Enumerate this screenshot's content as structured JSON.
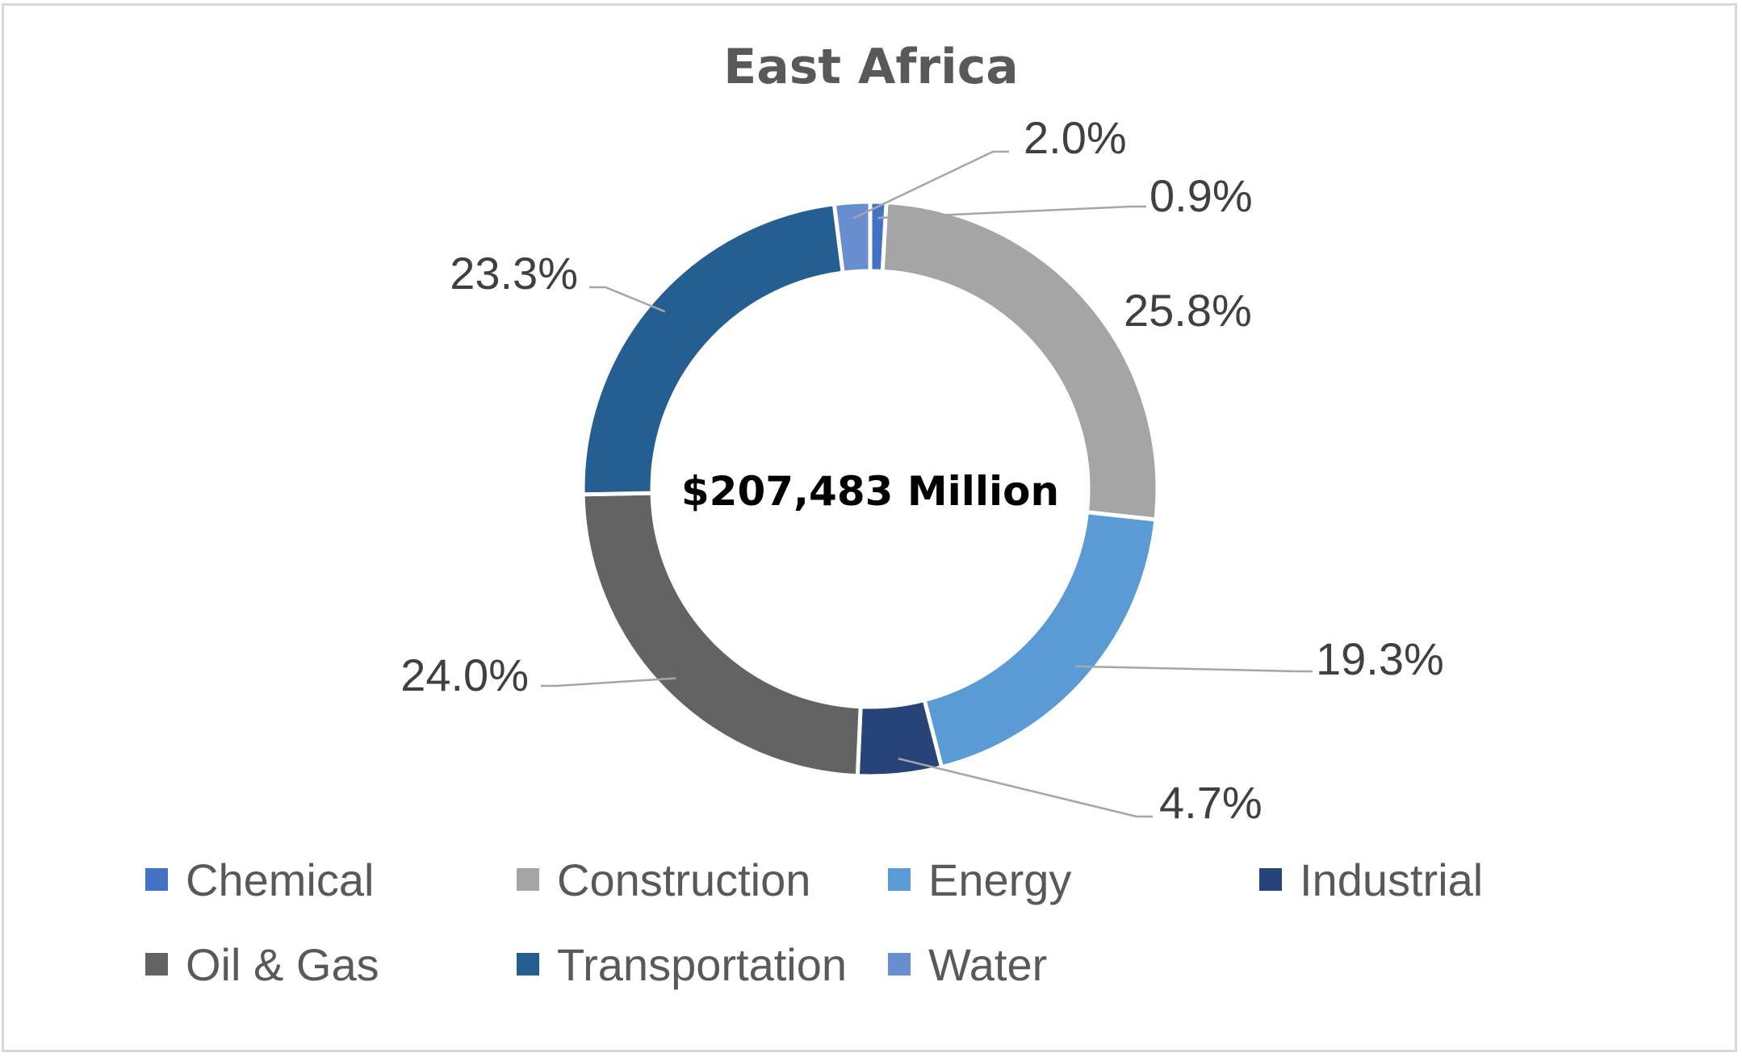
{
  "chart_data": {
    "type": "pie",
    "title": "East Africa",
    "center_label": "$207,483 Million",
    "categories": [
      "Chemical",
      "Construction",
      "Energy",
      "Industrial",
      "Oil & Gas",
      "Transportation",
      "Water"
    ],
    "values": [
      0.9,
      25.8,
      19.3,
      4.7,
      24.0,
      23.3,
      2.0
    ],
    "value_labels": [
      "0.9%",
      "25.8%",
      "19.3%",
      "4.7%",
      "24.0%",
      "23.3%",
      "2.0%"
    ],
    "colors": [
      "#4472c4",
      "#a5a5a5",
      "#5b9bd5",
      "#264478",
      "#636363",
      "#255e91",
      "#698ed0"
    ],
    "legend_position": "bottom"
  }
}
